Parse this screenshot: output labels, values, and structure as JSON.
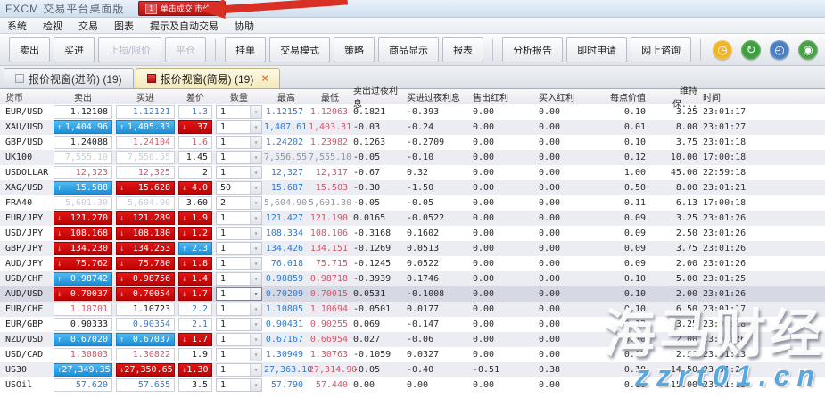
{
  "window": {
    "title": "FXCM 交易平台桌面版",
    "badge": {
      "number": "1",
      "label": "单击成交 市价单"
    }
  },
  "menu": {
    "items": [
      "系统",
      "检视",
      "交易",
      "图表",
      "提示及自动交易",
      "协助"
    ]
  },
  "toolbar": {
    "groups": [
      [
        {
          "label": "卖出",
          "enabled": true
        },
        {
          "label": "买进",
          "enabled": true
        },
        {
          "label": "止损/限价",
          "enabled": false
        },
        {
          "label": "平仓",
          "enabled": false
        }
      ],
      [
        {
          "label": "挂单",
          "enabled": true
        },
        {
          "label": "交易模式",
          "enabled": true
        },
        {
          "label": "策略",
          "enabled": true
        },
        {
          "label": "商品显示",
          "enabled": true
        },
        {
          "label": "报表",
          "enabled": true
        }
      ],
      [
        {
          "label": "分析报告",
          "enabled": true
        },
        {
          "label": "即时申请",
          "enabled": true
        },
        {
          "label": "网上谘询",
          "enabled": true
        }
      ]
    ],
    "icons": [
      {
        "name": "clock-history-icon",
        "glyph": "◷",
        "color": "#f0b429"
      },
      {
        "name": "refresh-icon",
        "glyph": "↻",
        "color": "#3f9e3f"
      },
      {
        "name": "world-clock-icon",
        "glyph": "◴",
        "color": "#4a80c4"
      },
      {
        "name": "community-icon",
        "glyph": "◉",
        "color": "#46a046"
      }
    ]
  },
  "tabs": [
    {
      "label": "报价视窗(进阶)  (19)",
      "active": false
    },
    {
      "label": "报价视窗(简易)  (19)",
      "active": true,
      "close_label": "×"
    }
  ],
  "quote_table": {
    "headers": [
      "货币",
      "卖出",
      "买进",
      "差价",
      "数量",
      "最高",
      "最低",
      "卖出过夜利息",
      "买进过夜利息",
      "售出红利",
      "买入红利",
      "每点价值",
      "维持保...",
      "时间"
    ],
    "rows": [
      {
        "currency": "EUR/USD",
        "sell": {
          "value": "1.12108",
          "style": "plain"
        },
        "buy": {
          "value": "1.12121",
          "style": "blue"
        },
        "spread": {
          "value": "1.3",
          "style": "blue"
        },
        "quantity": "1",
        "high": "1.12157",
        "low": "1.12063",
        "sell_rollover": "0.1821",
        "buy_rollover": "-0.393",
        "sell_dividend": "0.00",
        "buy_dividend": "0.00",
        "pip_value": "0.10",
        "margin": "3.25",
        "time": "23:01:17"
      },
      {
        "currency": "XAU/USD",
        "sell": {
          "value": "1,404.96",
          "style": "up"
        },
        "buy": {
          "value": "1,405.33",
          "style": "up"
        },
        "spread": {
          "value": "37",
          "style": "down"
        },
        "quantity": "1",
        "high": "1,407.61",
        "low": "1,403.31",
        "sell_rollover": "-0.03",
        "buy_rollover": "-0.24",
        "sell_dividend": "0.00",
        "buy_dividend": "0.00",
        "pip_value": "0.01",
        "margin": "8.00",
        "time": "23:01:27"
      },
      {
        "currency": "GBP/USD",
        "sell": {
          "value": "1.24088",
          "style": "plain"
        },
        "buy": {
          "value": "1.24104",
          "style": "red"
        },
        "spread": {
          "value": "1.6",
          "style": "red"
        },
        "quantity": "1",
        "high": "1.24202",
        "low": "1.23982",
        "sell_rollover": "0.1263",
        "buy_rollover": "-0.2709",
        "sell_dividend": "0.00",
        "buy_dividend": "0.00",
        "pip_value": "0.10",
        "margin": "3.75",
        "time": "23:01:18"
      },
      {
        "currency": "UK100",
        "sell": {
          "value": "7,555.10",
          "style": "muted"
        },
        "buy": {
          "value": "7,556.55",
          "style": "muted"
        },
        "spread": {
          "value": "1.45",
          "style": "plain"
        },
        "quantity": "1",
        "high": "7,556.55",
        "low": "7,555.10",
        "hl_muted": true,
        "sell_rollover": "-0.05",
        "buy_rollover": "-0.10",
        "sell_dividend": "0.00",
        "buy_dividend": "0.00",
        "pip_value": "0.12",
        "margin": "10.00",
        "time": "17:00:18"
      },
      {
        "currency": "USDOLLAR",
        "sell": {
          "value": "12,323",
          "style": "red"
        },
        "buy": {
          "value": "12,325",
          "style": "red"
        },
        "spread": {
          "value": "2",
          "style": "plain"
        },
        "quantity": "1",
        "high": "12,327",
        "low": "12,317",
        "sell_rollover": "-0.67",
        "buy_rollover": "0.32",
        "sell_dividend": "0.00",
        "buy_dividend": "0.00",
        "pip_value": "1.00",
        "margin": "45.00",
        "time": "22:59:18"
      },
      {
        "currency": "XAG/USD",
        "sell": {
          "value": "15.588",
          "style": "up"
        },
        "buy": {
          "value": "15.628",
          "style": "down"
        },
        "spread": {
          "value": "4.0",
          "style": "down"
        },
        "quantity": "50",
        "high": "15.687",
        "low": "15.503",
        "sell_rollover": "-0.30",
        "buy_rollover": "-1.50",
        "sell_dividend": "0.00",
        "buy_dividend": "0.00",
        "pip_value": "0.50",
        "margin": "8.00",
        "time": "23:01:21"
      },
      {
        "currency": "FRA40",
        "sell": {
          "value": "5,601.30",
          "style": "muted"
        },
        "buy": {
          "value": "5,604.90",
          "style": "muted"
        },
        "spread": {
          "value": "3.60",
          "style": "plain"
        },
        "quantity": "2",
        "high": "5,604.90",
        "low": "5,601.30",
        "hl_muted": true,
        "sell_rollover": "-0.05",
        "buy_rollover": "-0.05",
        "sell_dividend": "0.00",
        "buy_dividend": "0.00",
        "pip_value": "0.11",
        "margin": "6.13",
        "time": "17:00:18"
      },
      {
        "currency": "EUR/JPY",
        "sell": {
          "value": "121.270",
          "style": "down"
        },
        "buy": {
          "value": "121.289",
          "style": "down"
        },
        "spread": {
          "value": "1.9",
          "style": "down"
        },
        "quantity": "1",
        "high": "121.427",
        "low": "121.190",
        "sell_rollover": "0.0165",
        "buy_rollover": "-0.0522",
        "sell_dividend": "0.00",
        "buy_dividend": "0.00",
        "pip_value": "0.09",
        "margin": "3.25",
        "time": "23:01:26"
      },
      {
        "currency": "USD/JPY",
        "sell": {
          "value": "108.168",
          "style": "down"
        },
        "buy": {
          "value": "108.180",
          "style": "down"
        },
        "spread": {
          "value": "1.2",
          "style": "down"
        },
        "quantity": "1",
        "high": "108.334",
        "low": "108.106",
        "sell_rollover": "-0.3168",
        "buy_rollover": "0.1602",
        "sell_dividend": "0.00",
        "buy_dividend": "0.00",
        "pip_value": "0.09",
        "margin": "2.50",
        "time": "23:01:26"
      },
      {
        "currency": "GBP/JPY",
        "sell": {
          "value": "134.230",
          "style": "down"
        },
        "buy": {
          "value": "134.253",
          "style": "down"
        },
        "spread": {
          "value": "2.3",
          "style": "up"
        },
        "quantity": "1",
        "high": "134.426",
        "low": "134.151",
        "sell_rollover": "-0.1269",
        "buy_rollover": "0.0513",
        "sell_dividend": "0.00",
        "buy_dividend": "0.00",
        "pip_value": "0.09",
        "margin": "3.75",
        "time": "23:01:26"
      },
      {
        "currency": "AUD/JPY",
        "sell": {
          "value": "75.762",
          "style": "down"
        },
        "buy": {
          "value": "75.780",
          "style": "down"
        },
        "spread": {
          "value": "1.8",
          "style": "down"
        },
        "quantity": "1",
        "high": "76.018",
        "low": "75.715",
        "sell_rollover": "-0.1245",
        "buy_rollover": "0.0522",
        "sell_dividend": "0.00",
        "buy_dividend": "0.00",
        "pip_value": "0.09",
        "margin": "2.00",
        "time": "23:01:26"
      },
      {
        "currency": "USD/CHF",
        "sell": {
          "value": "0.98742",
          "style": "up"
        },
        "buy": {
          "value": "0.98756",
          "style": "down"
        },
        "spread": {
          "value": "1.4",
          "style": "down"
        },
        "quantity": "1",
        "high": "0.98859",
        "low": "0.98718",
        "sell_rollover": "-0.3939",
        "buy_rollover": "0.1746",
        "sell_dividend": "0.00",
        "buy_dividend": "0.00",
        "pip_value": "0.10",
        "margin": "5.00",
        "time": "23:01:25"
      },
      {
        "currency": "AUD/USD",
        "selected": true,
        "sell": {
          "value": "0.70037",
          "style": "down"
        },
        "buy": {
          "value": "0.70054",
          "style": "down"
        },
        "spread": {
          "value": "1.7",
          "style": "down"
        },
        "quantity": "1",
        "high": "0.70209",
        "low": "0.70015",
        "sell_rollover": "0.0531",
        "buy_rollover": "-0.1008",
        "sell_dividend": "0.00",
        "buy_dividend": "0.00",
        "pip_value": "0.10",
        "margin": "2.00",
        "time": "23:01:26"
      },
      {
        "currency": "EUR/CHF",
        "sell": {
          "value": "1.10701",
          "style": "red"
        },
        "buy": {
          "value": "1.10723",
          "style": "plain"
        },
        "spread": {
          "value": "2.2",
          "style": "blue"
        },
        "quantity": "1",
        "high": "1.10805",
        "low": "1.10694",
        "sell_rollover": "-0.0501",
        "buy_rollover": "0.0177",
        "sell_dividend": "0.00",
        "buy_dividend": "0.00",
        "pip_value": "0.10",
        "margin": "6.50",
        "time": "23:01:17"
      },
      {
        "currency": "EUR/GBP",
        "sell": {
          "value": "0.90333",
          "style": "plain"
        },
        "buy": {
          "value": "0.90354",
          "style": "blue"
        },
        "spread": {
          "value": "2.1",
          "style": "blue"
        },
        "quantity": "1",
        "high": "0.90431",
        "low": "0.90255",
        "sell_rollover": "0.069",
        "buy_rollover": "-0.147",
        "sell_dividend": "0.00",
        "buy_dividend": "0.00",
        "pip_value": "0.12",
        "margin": "3.25",
        "time": "23:01:18"
      },
      {
        "currency": "NZD/USD",
        "sell": {
          "value": "0.67020",
          "style": "up"
        },
        "buy": {
          "value": "0.67037",
          "style": "up"
        },
        "spread": {
          "value": "1.7",
          "style": "down"
        },
        "quantity": "1",
        "high": "0.67167",
        "low": "0.66954",
        "sell_rollover": "0.027",
        "buy_rollover": "-0.06",
        "sell_dividend": "0.00",
        "buy_dividend": "0.00",
        "pip_value": "0.10",
        "margin": "2.00",
        "time": "23:01:26"
      },
      {
        "currency": "USD/CAD",
        "sell": {
          "value": "1.30803",
          "style": "red"
        },
        "buy": {
          "value": "1.30822",
          "style": "red"
        },
        "spread": {
          "value": "1.9",
          "style": "plain"
        },
        "quantity": "1",
        "high": "1.30949",
        "low": "1.30763",
        "sell_rollover": "-0.1059",
        "buy_rollover": "0.0327",
        "sell_dividend": "0.00",
        "buy_dividend": "0.00",
        "pip_value": "0.07",
        "margin": "2.50",
        "time": "23:01:13"
      },
      {
        "currency": "US30",
        "sell": {
          "value": "27,349.35",
          "style": "up"
        },
        "buy": {
          "value": "27,350.65",
          "style": "down"
        },
        "spread": {
          "value": "1.30",
          "style": "down"
        },
        "quantity": "1",
        "high": "27,363.10",
        "low": "27,314.90",
        "sell_rollover": "-0.05",
        "buy_rollover": "-0.40",
        "sell_dividend": "-0.51",
        "buy_dividend": "0.38",
        "pip_value": "0.10",
        "margin": "14.50",
        "time": "23:01:25"
      },
      {
        "currency": "USOil",
        "sell": {
          "value": "57.620",
          "style": "blue"
        },
        "buy": {
          "value": "57.655",
          "style": "blue"
        },
        "spread": {
          "value": "3.5",
          "style": "plain"
        },
        "quantity": "1",
        "high": "57.790",
        "low": "57.440",
        "sell_rollover": "0.00",
        "buy_rollover": "0.00",
        "sell_dividend": "0.00",
        "buy_dividend": "0.00",
        "pip_value": "0.10",
        "margin": "15.00",
        "time": "23:01:13"
      }
    ]
  },
  "watermark": {
    "line1": "海马财经",
    "line2": "zzrt01.cn"
  },
  "colors": {
    "up_cell": "#1a8fd8",
    "down_cell": "#bb0202",
    "blue_text": "#2e7bd6",
    "red_text": "#d4556a",
    "badge_red": "#b01414"
  }
}
